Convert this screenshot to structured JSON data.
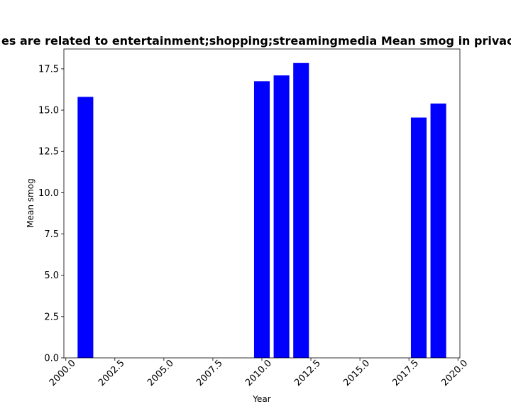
{
  "chart_data": {
    "type": "bar",
    "title": "es are related to entertainment;shopping;streamingmedia Mean smog in privacy",
    "xlabel": "Year",
    "ylabel": "Mean smog",
    "x": [
      2001,
      2010,
      2011,
      2012,
      2018,
      2019
    ],
    "values": [
      15.8,
      16.75,
      17.1,
      17.85,
      14.55,
      15.4
    ],
    "bar_width": 0.8,
    "xlim": [
      1999.9,
      2020.1
    ],
    "ylim": [
      0,
      18.7
    ],
    "x_ticks": [
      2000.0,
      2002.5,
      2005.0,
      2007.5,
      2010.0,
      2012.5,
      2015.0,
      2017.5,
      2020.0
    ],
    "x_tick_labels": [
      "2000.0",
      "2002.5",
      "2005.0",
      "2007.5",
      "2010.0",
      "2012.5",
      "2015.0",
      "2017.5",
      "2020.0"
    ],
    "y_ticks": [
      0.0,
      2.5,
      5.0,
      7.5,
      10.0,
      12.5,
      15.0,
      17.5
    ],
    "y_tick_labels": [
      "0.0",
      "2.5",
      "5.0",
      "7.5",
      "10.0",
      "12.5",
      "15.0",
      "17.5"
    ],
    "bar_color": "#0000ff",
    "grid": false,
    "legend": "none"
  }
}
